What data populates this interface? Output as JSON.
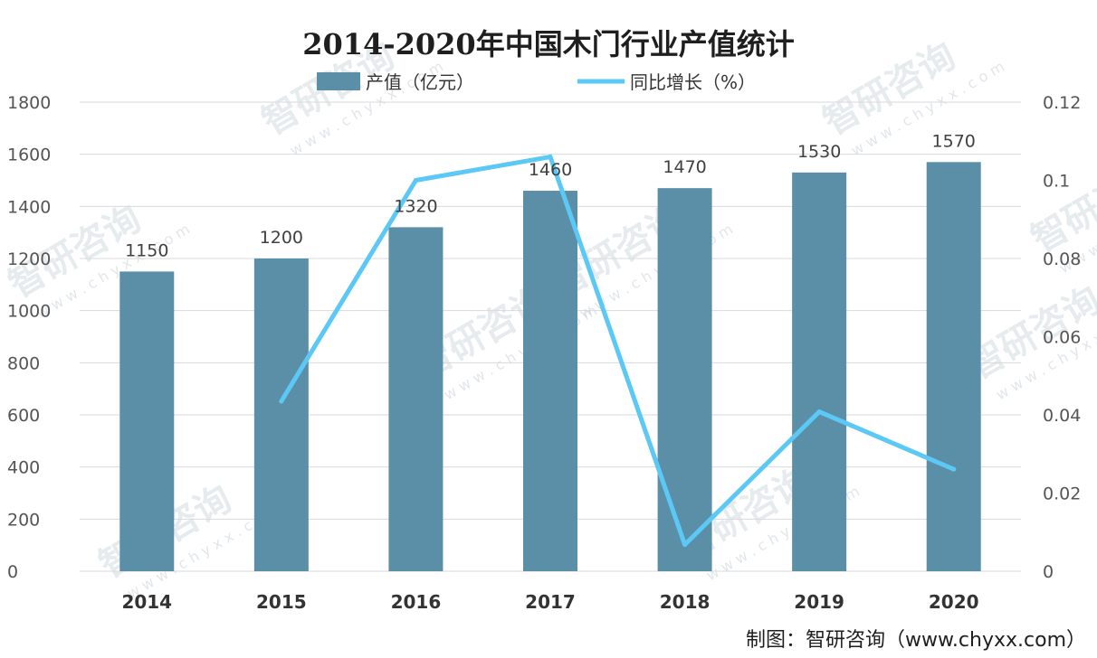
{
  "chart_data": {
    "type": "bar",
    "title": "2014-2020年中国木门行业产值统计",
    "categories": [
      "2014",
      "2015",
      "2016",
      "2017",
      "2018",
      "2019",
      "2020"
    ],
    "series": [
      {
        "name": "产值（亿元）",
        "type": "bar",
        "axis": "left",
        "color": "#5b8fa8",
        "values": [
          1150,
          1200,
          1320,
          1460,
          1470,
          1530,
          1570
        ]
      },
      {
        "name": "同比增长（%）",
        "type": "line",
        "axis": "right",
        "color": "#5bc8f5",
        "values": [
          null,
          0.0435,
          0.1,
          0.106,
          0.0068,
          0.0408,
          0.0261
        ]
      }
    ],
    "y_left": {
      "min": 0,
      "max": 1800,
      "ticks": [
        "0",
        "200",
        "400",
        "600",
        "800",
        "1000",
        "1200",
        "1400",
        "1600",
        "1800"
      ]
    },
    "y_right": {
      "min": 0,
      "max": 0.12,
      "ticks": [
        "0",
        "0.02",
        "0.04",
        "0.06",
        "0.08",
        "0.1",
        "0.12"
      ]
    },
    "data_labels": [
      "1150",
      "1200",
      "1320",
      "1460",
      "1470",
      "1530",
      "1570"
    ],
    "legend_position": "top",
    "grid": true
  },
  "source": "制图：智研咨询（www.chyxx.com）",
  "watermark": {
    "text": "智研咨询",
    "url": "w w w . c h y x x . c o m"
  }
}
